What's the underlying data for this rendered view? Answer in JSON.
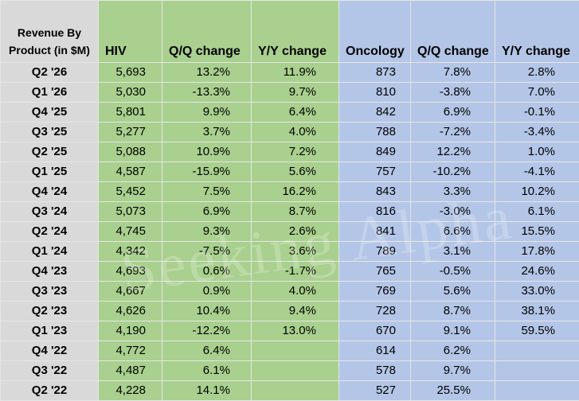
{
  "header": {
    "corner": "Revenue By Product (in $M)",
    "hiv": "HIV",
    "hiv_qq": "Q/Q change",
    "hiv_yy": "Y/Y change",
    "oncology": "Oncology",
    "onc_qq": "Q/Q change",
    "onc_yy": "Y/Y change"
  },
  "rows": [
    {
      "quarter": "Q2 '26",
      "hiv": "5,693",
      "hiv_qq": "13.2%",
      "hiv_yy": "11.9%",
      "onc": "873",
      "onc_qq": "7.8%",
      "onc_yy": "2.8%"
    },
    {
      "quarter": "Q1 '26",
      "hiv": "5,030",
      "hiv_qq": "-13.3%",
      "hiv_yy": "9.7%",
      "onc": "810",
      "onc_qq": "-3.8%",
      "onc_yy": "7.0%"
    },
    {
      "quarter": "Q4 '25",
      "hiv": "5,801",
      "hiv_qq": "9.9%",
      "hiv_yy": "6.4%",
      "onc": "842",
      "onc_qq": "6.9%",
      "onc_yy": "-0.1%"
    },
    {
      "quarter": "Q3 '25",
      "hiv": "5,277",
      "hiv_qq": "3.7%",
      "hiv_yy": "4.0%",
      "onc": "788",
      "onc_qq": "-7.2%",
      "onc_yy": "-3.4%"
    },
    {
      "quarter": "Q2 '25",
      "hiv": "5,088",
      "hiv_qq": "10.9%",
      "hiv_yy": "7.2%",
      "onc": "849",
      "onc_qq": "12.2%",
      "onc_yy": "1.0%"
    },
    {
      "quarter": "Q1 '25",
      "hiv": "4,587",
      "hiv_qq": "-15.9%",
      "hiv_yy": "5.6%",
      "onc": "757",
      "onc_qq": "-10.2%",
      "onc_yy": "-4.1%"
    },
    {
      "quarter": "Q4 '24",
      "hiv": "5,452",
      "hiv_qq": "7.5%",
      "hiv_yy": "16.2%",
      "onc": "843",
      "onc_qq": "3.3%",
      "onc_yy": "10.2%"
    },
    {
      "quarter": "Q3 '24",
      "hiv": "5,073",
      "hiv_qq": "6.9%",
      "hiv_yy": "8.7%",
      "onc": "816",
      "onc_qq": "-3.0%",
      "onc_yy": "6.1%"
    },
    {
      "quarter": "Q2 '24",
      "hiv": "4,745",
      "hiv_qq": "9.3%",
      "hiv_yy": "2.6%",
      "onc": "841",
      "onc_qq": "6.6%",
      "onc_yy": "15.5%"
    },
    {
      "quarter": "Q1 '24",
      "hiv": "4,342",
      "hiv_qq": "-7.5%",
      "hiv_yy": "3.6%",
      "onc": "789",
      "onc_qq": "3.1%",
      "onc_yy": "17.8%"
    },
    {
      "quarter": "Q4 '23",
      "hiv": "4,693",
      "hiv_qq": "0.6%",
      "hiv_yy": "-1.7%",
      "onc": "765",
      "onc_qq": "-0.5%",
      "onc_yy": "24.6%"
    },
    {
      "quarter": "Q3 '23",
      "hiv": "4,667",
      "hiv_qq": "0.9%",
      "hiv_yy": "4.0%",
      "onc": "769",
      "onc_qq": "5.6%",
      "onc_yy": "33.0%"
    },
    {
      "quarter": "Q2 '23",
      "hiv": "4,626",
      "hiv_qq": "10.4%",
      "hiv_yy": "9.4%",
      "onc": "728",
      "onc_qq": "8.7%",
      "onc_yy": "38.1%"
    },
    {
      "quarter": "Q1 '23",
      "hiv": "4,190",
      "hiv_qq": "-12.2%",
      "hiv_yy": "13.0%",
      "onc": "670",
      "onc_qq": "9.1%",
      "onc_yy": "59.5%"
    },
    {
      "quarter": "Q4 '22",
      "hiv": "4,772",
      "hiv_qq": "6.4%",
      "hiv_yy": "",
      "onc": "614",
      "onc_qq": "6.2%",
      "onc_yy": ""
    },
    {
      "quarter": "Q3 '22",
      "hiv": "4,487",
      "hiv_qq": "6.1%",
      "hiv_yy": "",
      "onc": "578",
      "onc_qq": "9.7%",
      "onc_yy": ""
    },
    {
      "quarter": "Q2 '22",
      "hiv": "4,228",
      "hiv_qq": "14.1%",
      "hiv_yy": "",
      "onc": "527",
      "onc_qq": "25.5%",
      "onc_yy": ""
    }
  ],
  "watermark": "Seeking Alpha",
  "colors": {
    "quarter_column": "#d9d9d9",
    "hiv_group": "#a9d08e",
    "oncology_group": "#b4c6e7"
  }
}
